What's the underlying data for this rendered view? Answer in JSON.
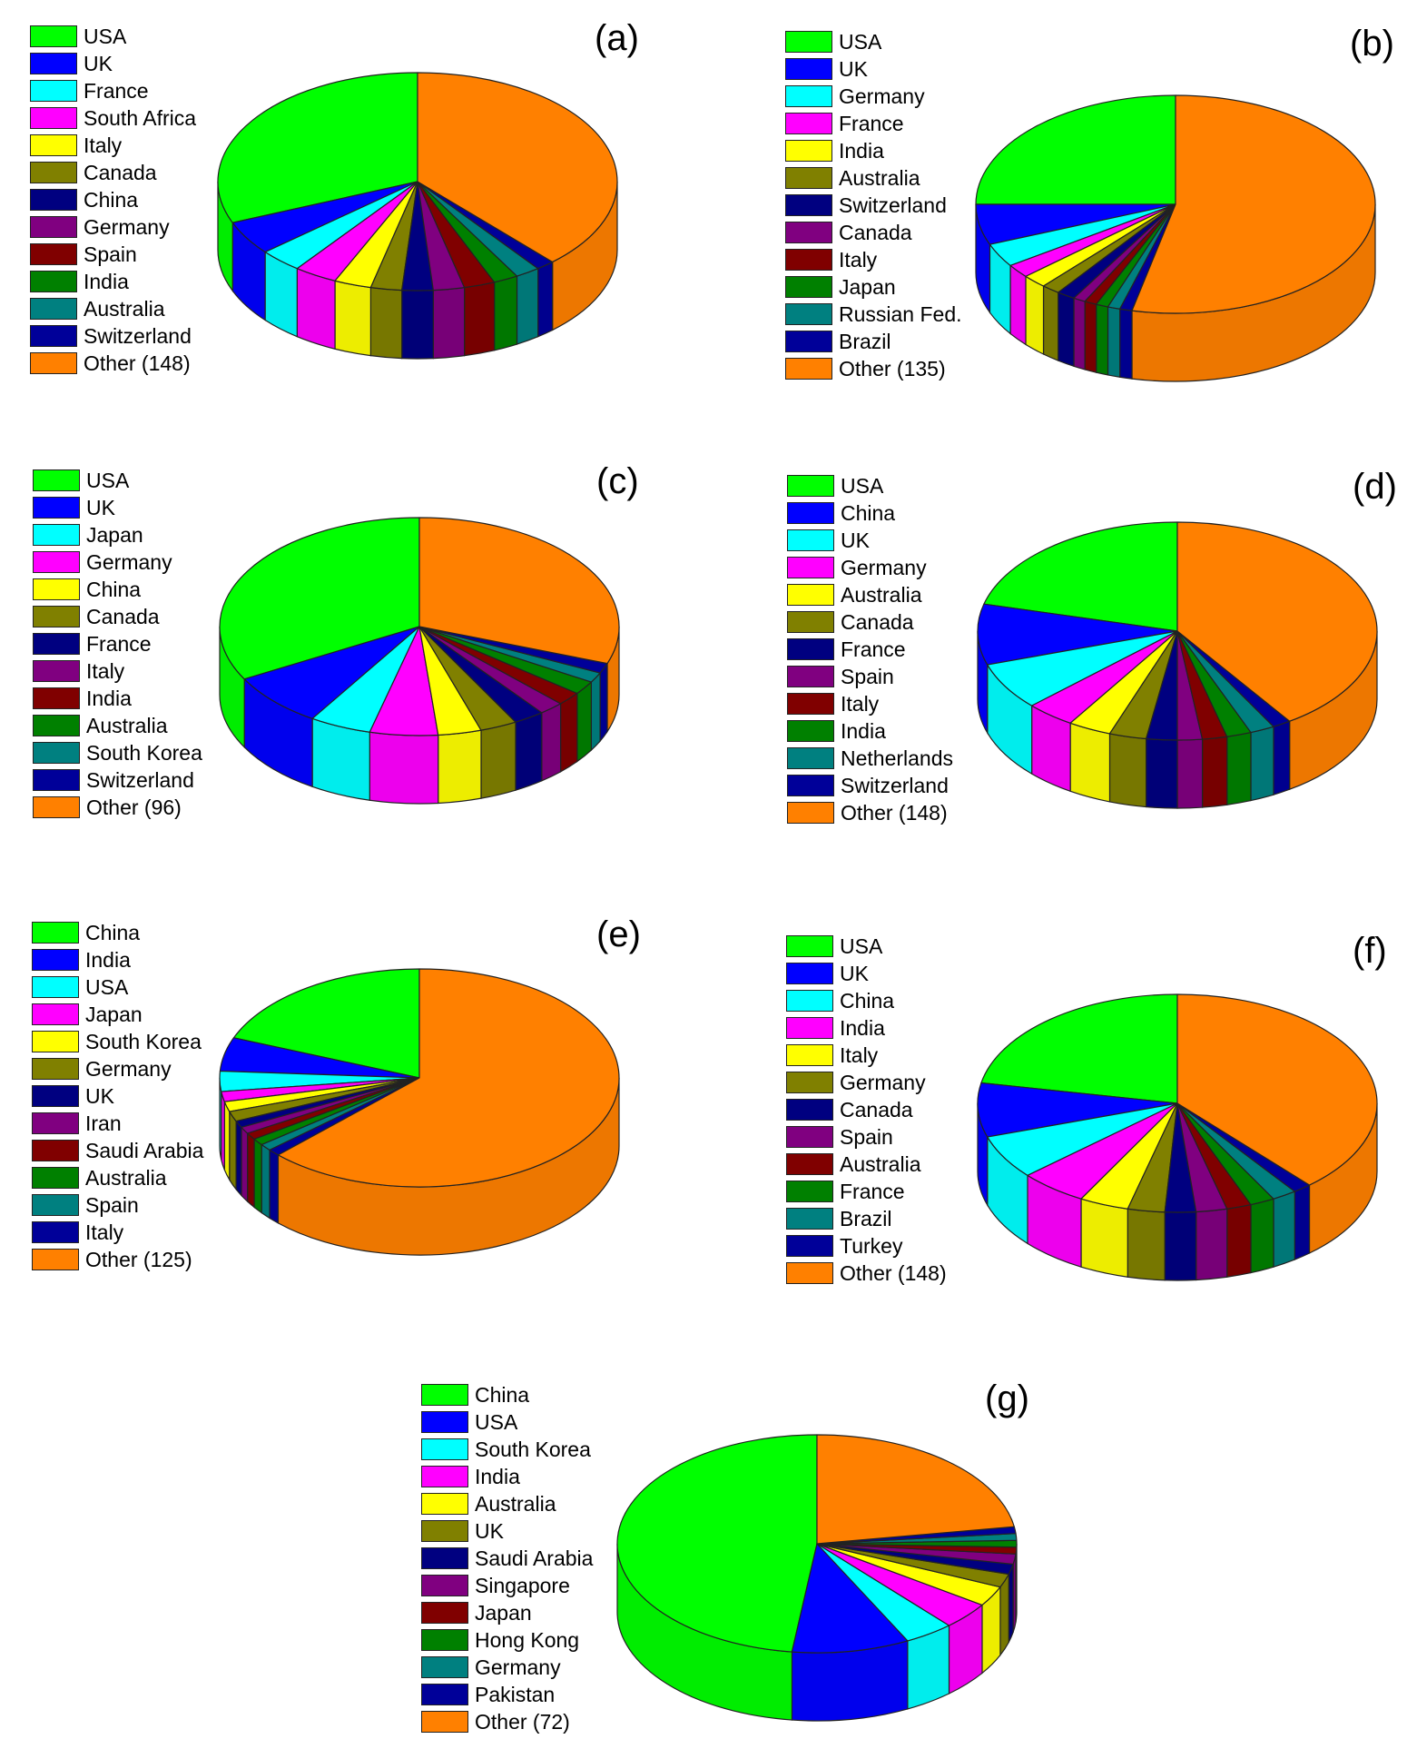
{
  "chart_data": [
    {
      "type": "pie",
      "panel_label": "(a)",
      "title": "",
      "legend_position": "left",
      "categories": [
        "USA",
        "UK",
        "France",
        "South Africa",
        "Italy",
        "Canada",
        "China",
        "Germany",
        "Spain",
        "India",
        "Australia",
        "Switzerland",
        "Other (148)"
      ],
      "values": [
        31,
        5,
        3.5,
        3.5,
        3,
        2.5,
        2.5,
        2.5,
        2.5,
        2,
        2,
        1.5,
        38
      ],
      "colors": [
        "#00ff00",
        "#0000ff",
        "#00ffff",
        "#ff00ff",
        "#ffff00",
        "#808000",
        "#000080",
        "#800080",
        "#800000",
        "#008000",
        "#008080",
        "#000099",
        "#ff8000"
      ]
    },
    {
      "type": "pie",
      "panel_label": "(b)",
      "title": "",
      "legend_position": "left",
      "categories": [
        "USA",
        "UK",
        "Germany",
        "France",
        "India",
        "Australia",
        "Switzerland",
        "Canada",
        "Italy",
        "Japan",
        "Russian Fed.",
        "Brazil",
        "Other (135)"
      ],
      "values": [
        25,
        6,
        3.5,
        2,
        2,
        1.5,
        1.5,
        1,
        1,
        1,
        1,
        1,
        53.5
      ],
      "colors": [
        "#00ff00",
        "#0000ff",
        "#00ffff",
        "#ff00ff",
        "#ffff00",
        "#808000",
        "#000080",
        "#800080",
        "#800000",
        "#008000",
        "#008080",
        "#000099",
        "#ff8000"
      ]
    },
    {
      "type": "pie",
      "panel_label": "(c)",
      "title": "",
      "legend_position": "left",
      "categories": [
        "USA",
        "UK",
        "Japan",
        "Germany",
        "China",
        "Canada",
        "France",
        "Italy",
        "India",
        "Australia",
        "South Korea",
        "Switzerland",
        "Other (96)"
      ],
      "values": [
        33,
        8,
        5,
        5.5,
        3.5,
        3,
        2.5,
        2,
        2,
        2,
        1.5,
        1.5,
        30.5
      ],
      "colors": [
        "#00ff00",
        "#0000ff",
        "#00ffff",
        "#ff00ff",
        "#ffff00",
        "#808000",
        "#000080",
        "#800080",
        "#800000",
        "#008000",
        "#008080",
        "#000099",
        "#ff8000"
      ]
    },
    {
      "type": "pie",
      "panel_label": "(d)",
      "title": "",
      "legend_position": "left",
      "categories": [
        "USA",
        "China",
        "UK",
        "Germany",
        "Australia",
        "Canada",
        "France",
        "Spain",
        "Italy",
        "India",
        "Netherlands",
        "Switzerland",
        "Other (148)"
      ],
      "values": [
        21,
        9,
        7,
        4,
        3.5,
        3,
        2.5,
        2,
        2,
        2,
        2,
        1.5,
        40.5
      ],
      "colors": [
        "#00ff00",
        "#0000ff",
        "#00ffff",
        "#ff00ff",
        "#ffff00",
        "#808000",
        "#000080",
        "#800080",
        "#800000",
        "#008000",
        "#008080",
        "#000099",
        "#ff8000"
      ]
    },
    {
      "type": "pie",
      "panel_label": "(e)",
      "title": "",
      "legend_position": "left",
      "categories": [
        "China",
        "India",
        "USA",
        "Japan",
        "South Korea",
        "Germany",
        "UK",
        "Iran",
        "Saudi Arabia",
        "Australia",
        "Spain",
        "Italy",
        "Other (125)"
      ],
      "values": [
        19,
        5,
        3,
        1.5,
        1.5,
        1.5,
        1,
        1,
        1,
        1,
        1,
        1,
        62.5
      ],
      "colors": [
        "#00ff00",
        "#0000ff",
        "#00ffff",
        "#ff00ff",
        "#ffff00",
        "#808000",
        "#000080",
        "#800080",
        "#800000",
        "#008000",
        "#008080",
        "#000099",
        "#ff8000"
      ]
    },
    {
      "type": "pie",
      "panel_label": "(f)",
      "title": "",
      "legend_position": "left",
      "categories": [
        "USA",
        "UK",
        "China",
        "India",
        "Italy",
        "Germany",
        "Canada",
        "Spain",
        "Australia",
        "France",
        "Brazil",
        "Turkey",
        "Other (148)"
      ],
      "values": [
        22,
        8,
        6.5,
        5.5,
        4,
        3,
        2.5,
        2.5,
        2,
        2,
        2,
        1.5,
        38.5
      ],
      "colors": [
        "#00ff00",
        "#0000ff",
        "#00ffff",
        "#ff00ff",
        "#ffff00",
        "#808000",
        "#000080",
        "#800080",
        "#800000",
        "#008000",
        "#008080",
        "#000099",
        "#ff8000"
      ]
    },
    {
      "type": "pie",
      "panel_label": "(g)",
      "title": "",
      "legend_position": "left",
      "categories": [
        "China",
        "USA",
        "South Korea",
        "India",
        "Australia",
        "UK",
        "Saudi Arabia",
        "Singapore",
        "Japan",
        "Hong Kong",
        "Germany",
        "Pakistan",
        "Other (72)"
      ],
      "values": [
        48,
        9.5,
        4,
        4,
        3,
        2,
        1.5,
        1.5,
        1,
        1,
        1,
        1,
        22.5
      ],
      "colors": [
        "#00ff00",
        "#0000ff",
        "#00ffff",
        "#ff00ff",
        "#ffff00",
        "#808000",
        "#000080",
        "#800080",
        "#800000",
        "#008000",
        "#008080",
        "#000099",
        "#ff8000"
      ]
    }
  ]
}
